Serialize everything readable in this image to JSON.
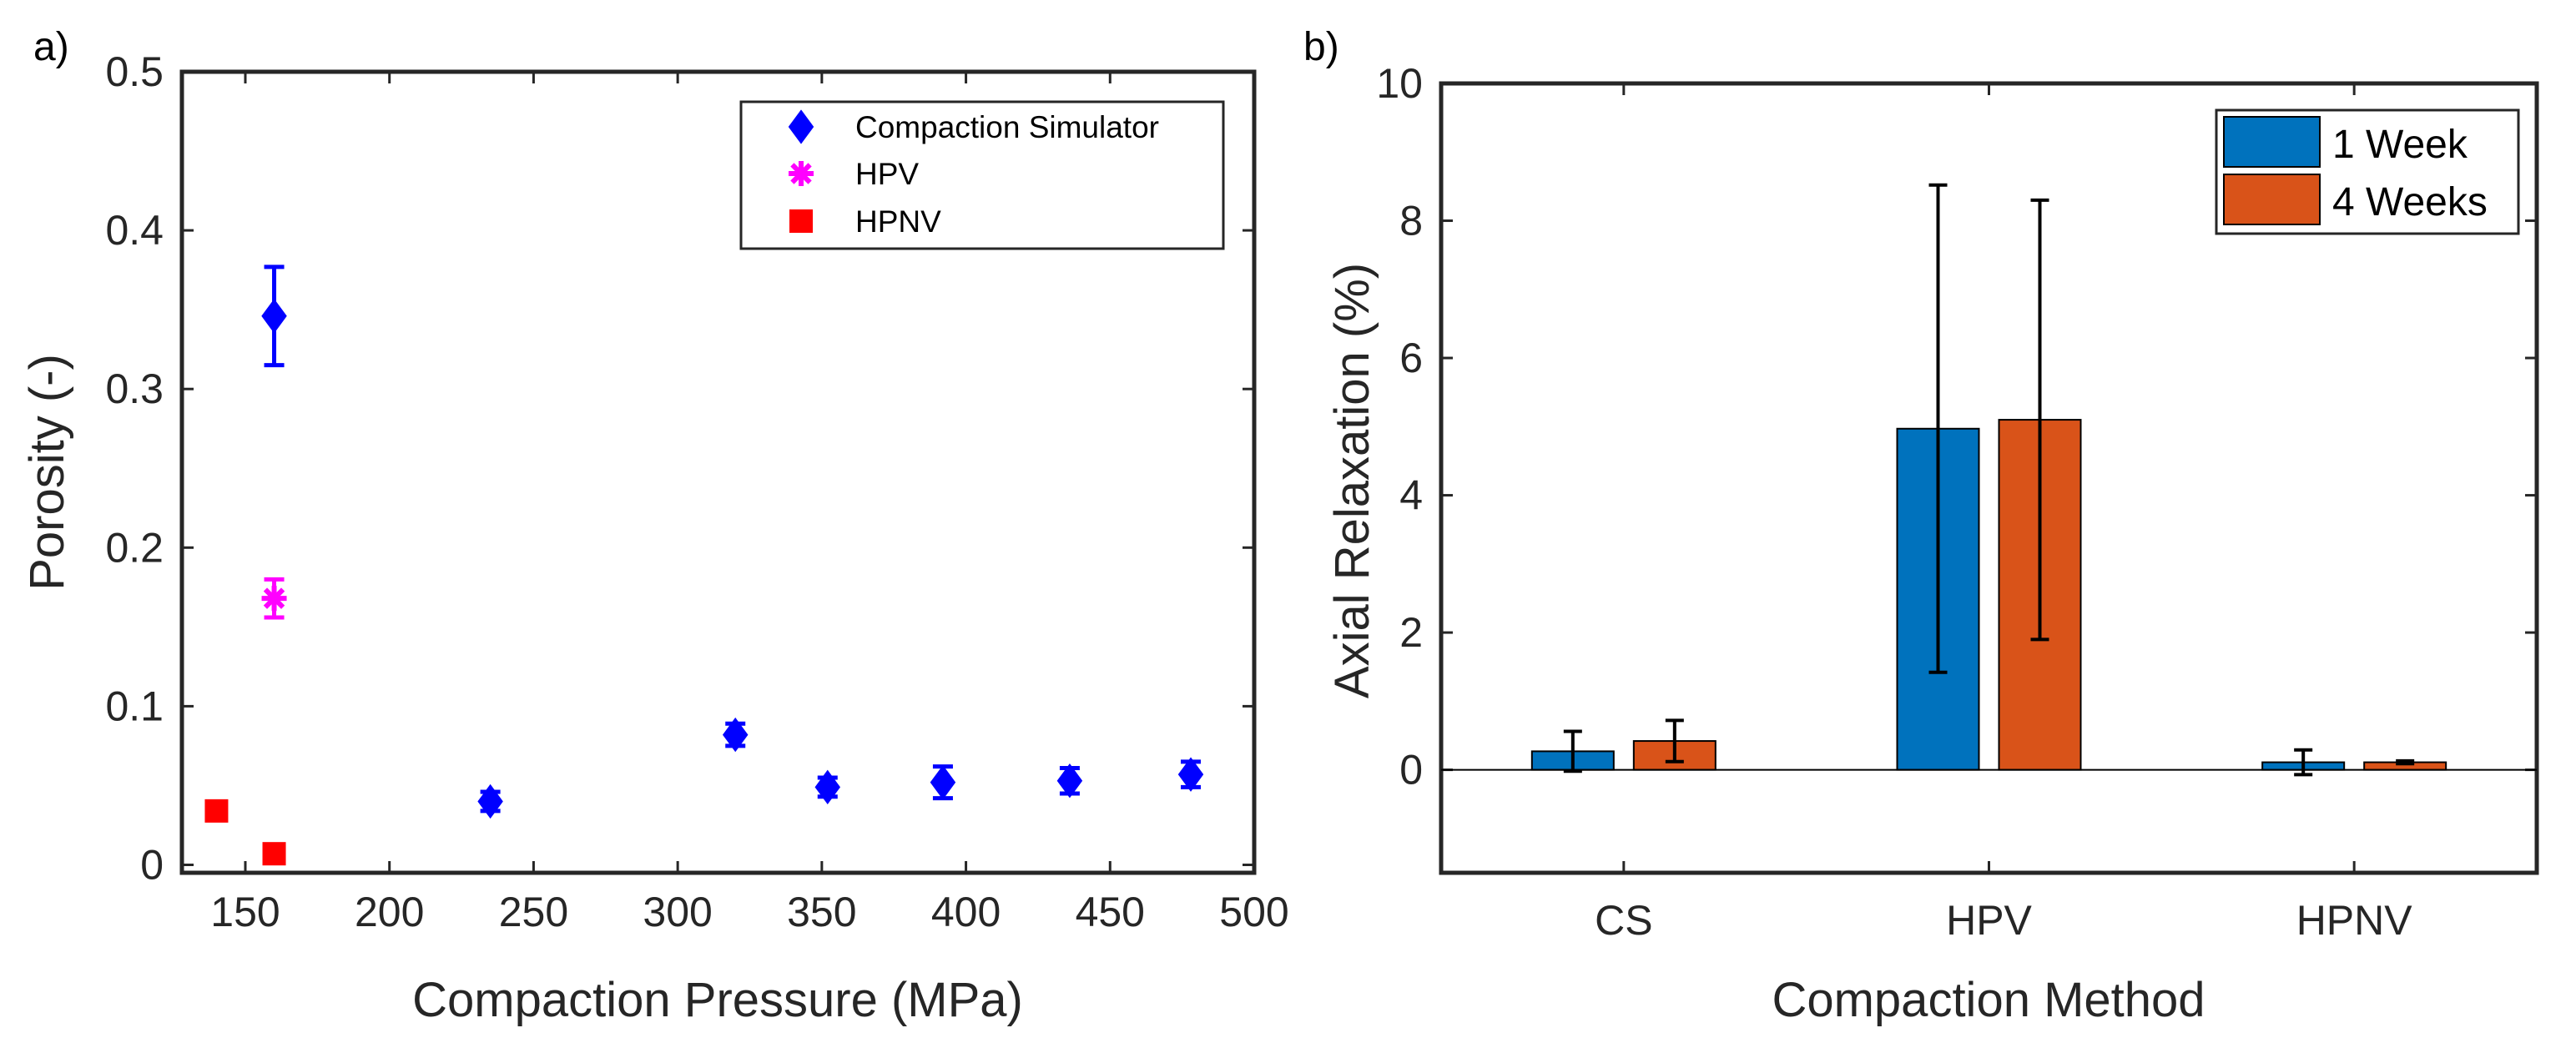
{
  "chart_data": [
    {
      "panel_label": "a)",
      "type": "scatter",
      "xlabel": "Compaction Pressure (MPa)",
      "ylabel": "Porosity (-)",
      "xlim": [
        128,
        500
      ],
      "ylim": [
        -0.005,
        0.5
      ],
      "xticks": [
        150,
        200,
        250,
        300,
        350,
        400,
        450,
        500
      ],
      "yticks": [
        0,
        0.1,
        0.2,
        0.3,
        0.4,
        0.5
      ],
      "ytick_labels": [
        "0",
        "0.1",
        "0.2",
        "0.3",
        "0.4",
        "0.5"
      ],
      "grid": false,
      "legend_position": "top-right",
      "series": [
        {
          "name": "Compaction Simulator",
          "marker": "diamond",
          "color": "#0000ff",
          "points": [
            {
              "x": 160,
              "y": 0.346,
              "err": 0.031
            },
            {
              "x": 235,
              "y": 0.04,
              "err": 0.006
            },
            {
              "x": 320,
              "y": 0.082,
              "err": 0.007
            },
            {
              "x": 352,
              "y": 0.049,
              "err": 0.006
            },
            {
              "x": 392,
              "y": 0.052,
              "err": 0.01
            },
            {
              "x": 436,
              "y": 0.053,
              "err": 0.008
            },
            {
              "x": 478,
              "y": 0.057,
              "err": 0.008
            }
          ]
        },
        {
          "name": "HPV",
          "marker": "asterisk",
          "color": "#ff00ff",
          "points": [
            {
              "x": 160,
              "y": 0.168,
              "err": 0.012
            }
          ]
        },
        {
          "name": "HPNV",
          "marker": "square",
          "color": "#ff0000",
          "points": [
            {
              "x": 140,
              "y": 0.034,
              "err": 0.004
            },
            {
              "x": 160,
              "y": 0.007,
              "err": 0.001
            }
          ]
        }
      ]
    },
    {
      "panel_label": "b)",
      "type": "bar",
      "xlabel": "Compaction Method",
      "ylabel": "Axial Relaxation (%)",
      "categories": [
        "CS",
        "HPV",
        "HPNV"
      ],
      "ylim": [
        -1.5,
        10
      ],
      "yticks": [
        0,
        2,
        4,
        6,
        8,
        10
      ],
      "grid": false,
      "legend_position": "top-right",
      "series": [
        {
          "name": "1 Week",
          "color": "#0072bd",
          "values": [
            0.27,
            4.97,
            0.11
          ],
          "errors": [
            0.29,
            3.55,
            0.18
          ]
        },
        {
          "name": "4 Weeks",
          "color": "#d95319",
          "values": [
            0.42,
            5.1,
            0.11
          ],
          "errors": [
            0.3,
            3.2,
            0.02
          ]
        }
      ]
    }
  ]
}
